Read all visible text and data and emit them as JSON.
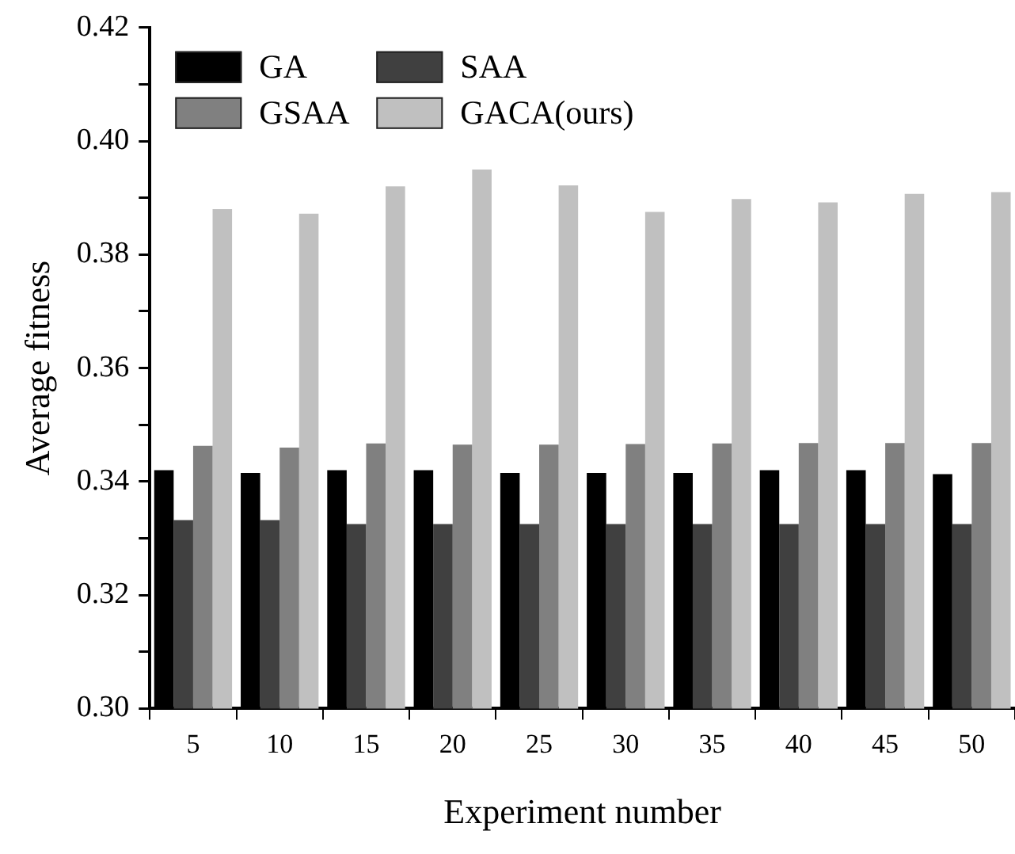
{
  "chart_data": {
    "type": "bar",
    "xlabel": "Experiment number",
    "ylabel": "Average fitness",
    "categories": [
      "5",
      "10",
      "15",
      "20",
      "25",
      "30",
      "35",
      "40",
      "45",
      "50"
    ],
    "series": [
      {
        "name": "GA",
        "color": "#000000",
        "values": [
          0.342,
          0.3415,
          0.342,
          0.342,
          0.3415,
          0.3415,
          0.3415,
          0.342,
          0.342,
          0.3413
        ]
      },
      {
        "name": "SAA",
        "color": "#404040",
        "values": [
          0.3332,
          0.3332,
          0.3325,
          0.3325,
          0.3325,
          0.3325,
          0.3325,
          0.3325,
          0.3325,
          0.3325
        ]
      },
      {
        "name": "GSAA",
        "color": "#808080",
        "values": [
          0.3463,
          0.346,
          0.3467,
          0.3465,
          0.3465,
          0.3466,
          0.3467,
          0.3468,
          0.3468,
          0.3468
        ]
      },
      {
        "name": "GACA(ours)",
        "color": "#c0c0c0",
        "values": [
          0.388,
          0.3872,
          0.392,
          0.395,
          0.3922,
          0.3875,
          0.3898,
          0.3892,
          0.3907,
          0.391
        ]
      }
    ],
    "ylim": [
      0.3,
      0.42
    ],
    "yticks": [
      {
        "value": 0.3,
        "label": "0.30"
      },
      {
        "value": 0.31,
        "label": null
      },
      {
        "value": 0.32,
        "label": "0.32"
      },
      {
        "value": 0.33,
        "label": null
      },
      {
        "value": 0.34,
        "label": "0.34"
      },
      {
        "value": 0.35,
        "label": null
      },
      {
        "value": 0.36,
        "label": "0.36"
      },
      {
        "value": 0.37,
        "label": null
      },
      {
        "value": 0.38,
        "label": "0.38"
      },
      {
        "value": 0.39,
        "label": null
      },
      {
        "value": 0.4,
        "label": "0.40"
      },
      {
        "value": 0.41,
        "label": null
      },
      {
        "value": 0.42,
        "label": "0.42"
      }
    ],
    "grid": false,
    "legend": "top left"
  }
}
